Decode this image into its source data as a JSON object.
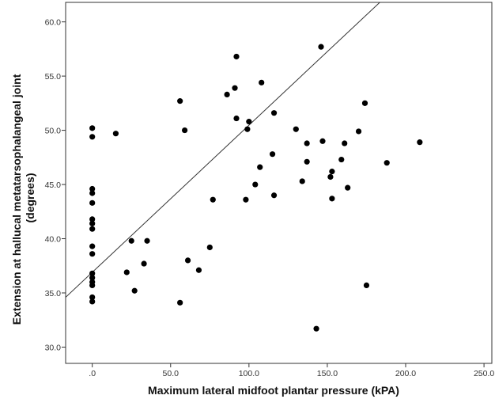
{
  "chart_data": {
    "type": "scatter",
    "title": "",
    "xlabel": "Maximum lateral midfoot plantar pressure (kPA)",
    "ylabel_lines": [
      "Extension at hallucal metatarsophalangeal joint",
      "(degrees)"
    ],
    "xlim": [
      -17,
      255
    ],
    "ylim": [
      28.5,
      61.8
    ],
    "x_ticks": [
      0,
      50,
      100,
      150,
      200,
      250
    ],
    "x_tick_labels": [
      ".0",
      "50.0",
      "100.0",
      "150.0",
      "200.0",
      "250.0"
    ],
    "y_ticks": [
      30,
      35,
      40,
      45,
      50,
      55,
      60
    ],
    "y_tick_labels": [
      "30.0",
      "35.0",
      "40.0",
      "45.0",
      "50.0",
      "55.0",
      "60.0"
    ],
    "grid": false,
    "legend": "none",
    "fit_line": {
      "intercept": 36.9,
      "slope": 0.1357
    },
    "points": [
      {
        "x": 0,
        "y": 50.2
      },
      {
        "x": 0,
        "y": 49.4
      },
      {
        "x": 0,
        "y": 44.6
      },
      {
        "x": 0,
        "y": 44.2
      },
      {
        "x": 0,
        "y": 43.3
      },
      {
        "x": 0,
        "y": 41.8
      },
      {
        "x": 0,
        "y": 41.4
      },
      {
        "x": 0,
        "y": 40.9
      },
      {
        "x": 0,
        "y": 39.3
      },
      {
        "x": 0,
        "y": 38.6
      },
      {
        "x": 0,
        "y": 36.8
      },
      {
        "x": 0,
        "y": 36.4
      },
      {
        "x": 0,
        "y": 36.0
      },
      {
        "x": 0,
        "y": 35.7
      },
      {
        "x": 0,
        "y": 34.6
      },
      {
        "x": 0,
        "y": 34.2
      },
      {
        "x": 15,
        "y": 49.7
      },
      {
        "x": 22,
        "y": 36.9
      },
      {
        "x": 25,
        "y": 39.8
      },
      {
        "x": 27,
        "y": 35.2
      },
      {
        "x": 33,
        "y": 37.7
      },
      {
        "x": 35,
        "y": 39.8
      },
      {
        "x": 56,
        "y": 52.7
      },
      {
        "x": 56,
        "y": 34.1
      },
      {
        "x": 59,
        "y": 50.0
      },
      {
        "x": 61,
        "y": 38.0
      },
      {
        "x": 68,
        "y": 37.1
      },
      {
        "x": 75,
        "y": 39.2
      },
      {
        "x": 77,
        "y": 43.6
      },
      {
        "x": 86,
        "y": 53.3
      },
      {
        "x": 91,
        "y": 53.9
      },
      {
        "x": 92,
        "y": 56.8
      },
      {
        "x": 92,
        "y": 51.1
      },
      {
        "x": 98,
        "y": 43.6
      },
      {
        "x": 99,
        "y": 50.1
      },
      {
        "x": 100,
        "y": 50.8
      },
      {
        "x": 104,
        "y": 45.0
      },
      {
        "x": 107,
        "y": 46.6
      },
      {
        "x": 108,
        "y": 54.4
      },
      {
        "x": 115,
        "y": 47.8
      },
      {
        "x": 116,
        "y": 51.6
      },
      {
        "x": 116,
        "y": 44.0
      },
      {
        "x": 130,
        "y": 50.1
      },
      {
        "x": 134,
        "y": 45.3
      },
      {
        "x": 137,
        "y": 48.8
      },
      {
        "x": 137,
        "y": 47.1
      },
      {
        "x": 143,
        "y": 31.7
      },
      {
        "x": 146,
        "y": 57.7
      },
      {
        "x": 147,
        "y": 49.0
      },
      {
        "x": 152,
        "y": 45.7
      },
      {
        "x": 153,
        "y": 46.2
      },
      {
        "x": 153,
        "y": 43.7
      },
      {
        "x": 159,
        "y": 47.3
      },
      {
        "x": 161,
        "y": 48.8
      },
      {
        "x": 163,
        "y": 44.7
      },
      {
        "x": 170,
        "y": 49.9
      },
      {
        "x": 174,
        "y": 52.5
      },
      {
        "x": 175,
        "y": 35.7
      },
      {
        "x": 188,
        "y": 47.0
      },
      {
        "x": 209,
        "y": 48.9
      }
    ]
  }
}
